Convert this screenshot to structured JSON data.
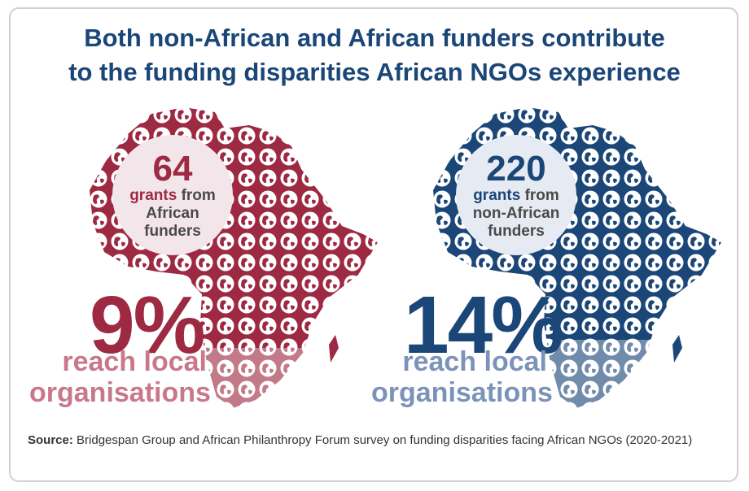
{
  "title": {
    "line1": "Both non-African and African funders contribute",
    "line2": "to the funding disparities African NGOs experience"
  },
  "left_panel": {
    "count": "64",
    "grants_word": "grants",
    "from_word": "from",
    "funder_line1": "African",
    "funder_line2": "funders",
    "percent": "9%",
    "reach_line1": "reach local",
    "reach_line2": "organisations",
    "color": "#9d2942"
  },
  "right_panel": {
    "count": "220",
    "grants_word": "grants",
    "from_word": "from",
    "funder_line1": "non-African",
    "funder_line2": "funders",
    "percent": "14%",
    "reach_line1": "reach local",
    "reach_line2": "organisations",
    "color": "#1b4678"
  },
  "source": {
    "label": "Source:",
    "text": "Bridgespan Group and African Philanthropy Forum survey on funding disparities facing African NGOs (2020-2021)"
  }
}
